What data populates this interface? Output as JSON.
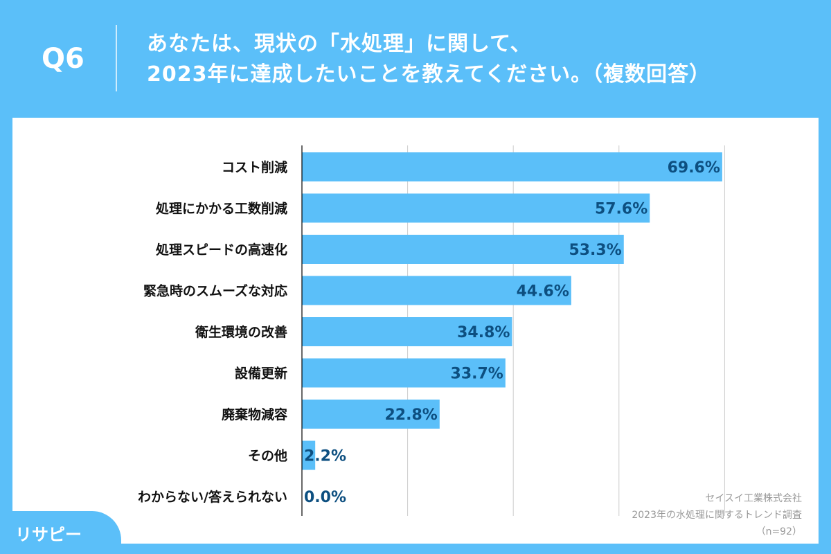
{
  "header": {
    "question_number": "Q6",
    "title_line1": "あなたは、現状の「水処理」に関して、",
    "title_line2": "2023年に達成したいことを教えてください。（複数回答）"
  },
  "colors": {
    "background": "#5bbff9",
    "bar": "#5bbff9",
    "value_label": "#0d4f80"
  },
  "chart_data": {
    "type": "bar",
    "orientation": "horizontal",
    "categories": [
      "コスト削減",
      "処理にかかる工数削減",
      "処理スピードの高速化",
      "緊急時のスムーズな対応",
      "衛生環境の改善",
      "設備更新",
      "廃棄物減容",
      "その他",
      "わからない/答えられない"
    ],
    "values": [
      69.6,
      57.6,
      53.3,
      44.6,
      34.8,
      33.7,
      22.8,
      2.2,
      0.0
    ],
    "value_labels": [
      "69.6%",
      "57.6%",
      "53.3%",
      "44.6%",
      "34.8%",
      "33.7%",
      "22.8%",
      "2.2%",
      "0.0%"
    ],
    "unit": "%",
    "grid": true,
    "xlim": [
      0,
      70
    ]
  },
  "source": {
    "line1": "セイスイ工業株式会社",
    "line2": "2023年の水処理に関するトレンド調査",
    "line3": "（n=92）"
  },
  "logo": {
    "text": "リサピー"
  }
}
